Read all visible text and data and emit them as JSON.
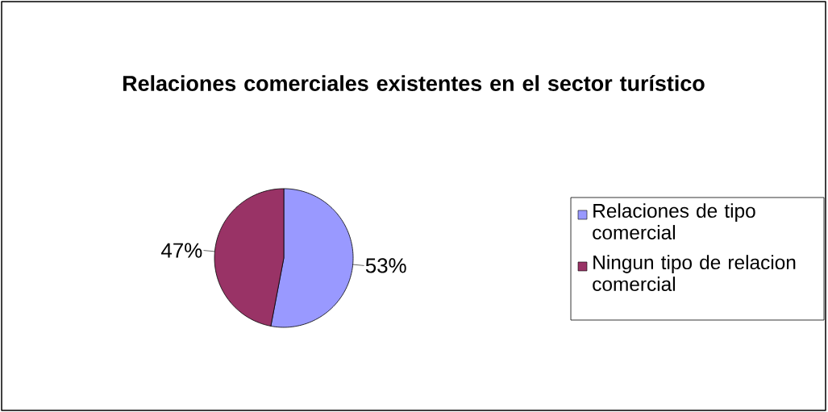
{
  "chart_data": {
    "type": "pie",
    "title": "Relaciones comerciales existentes en el sector turístico",
    "categories": [
      "Relaciones de tipo comercial",
      "Ningun tipo de relacion comercial"
    ],
    "values": [
      53,
      47
    ],
    "value_labels": [
      "53%",
      "47%"
    ],
    "colors": [
      "#9999ff",
      "#993366"
    ],
    "legend": "right"
  }
}
